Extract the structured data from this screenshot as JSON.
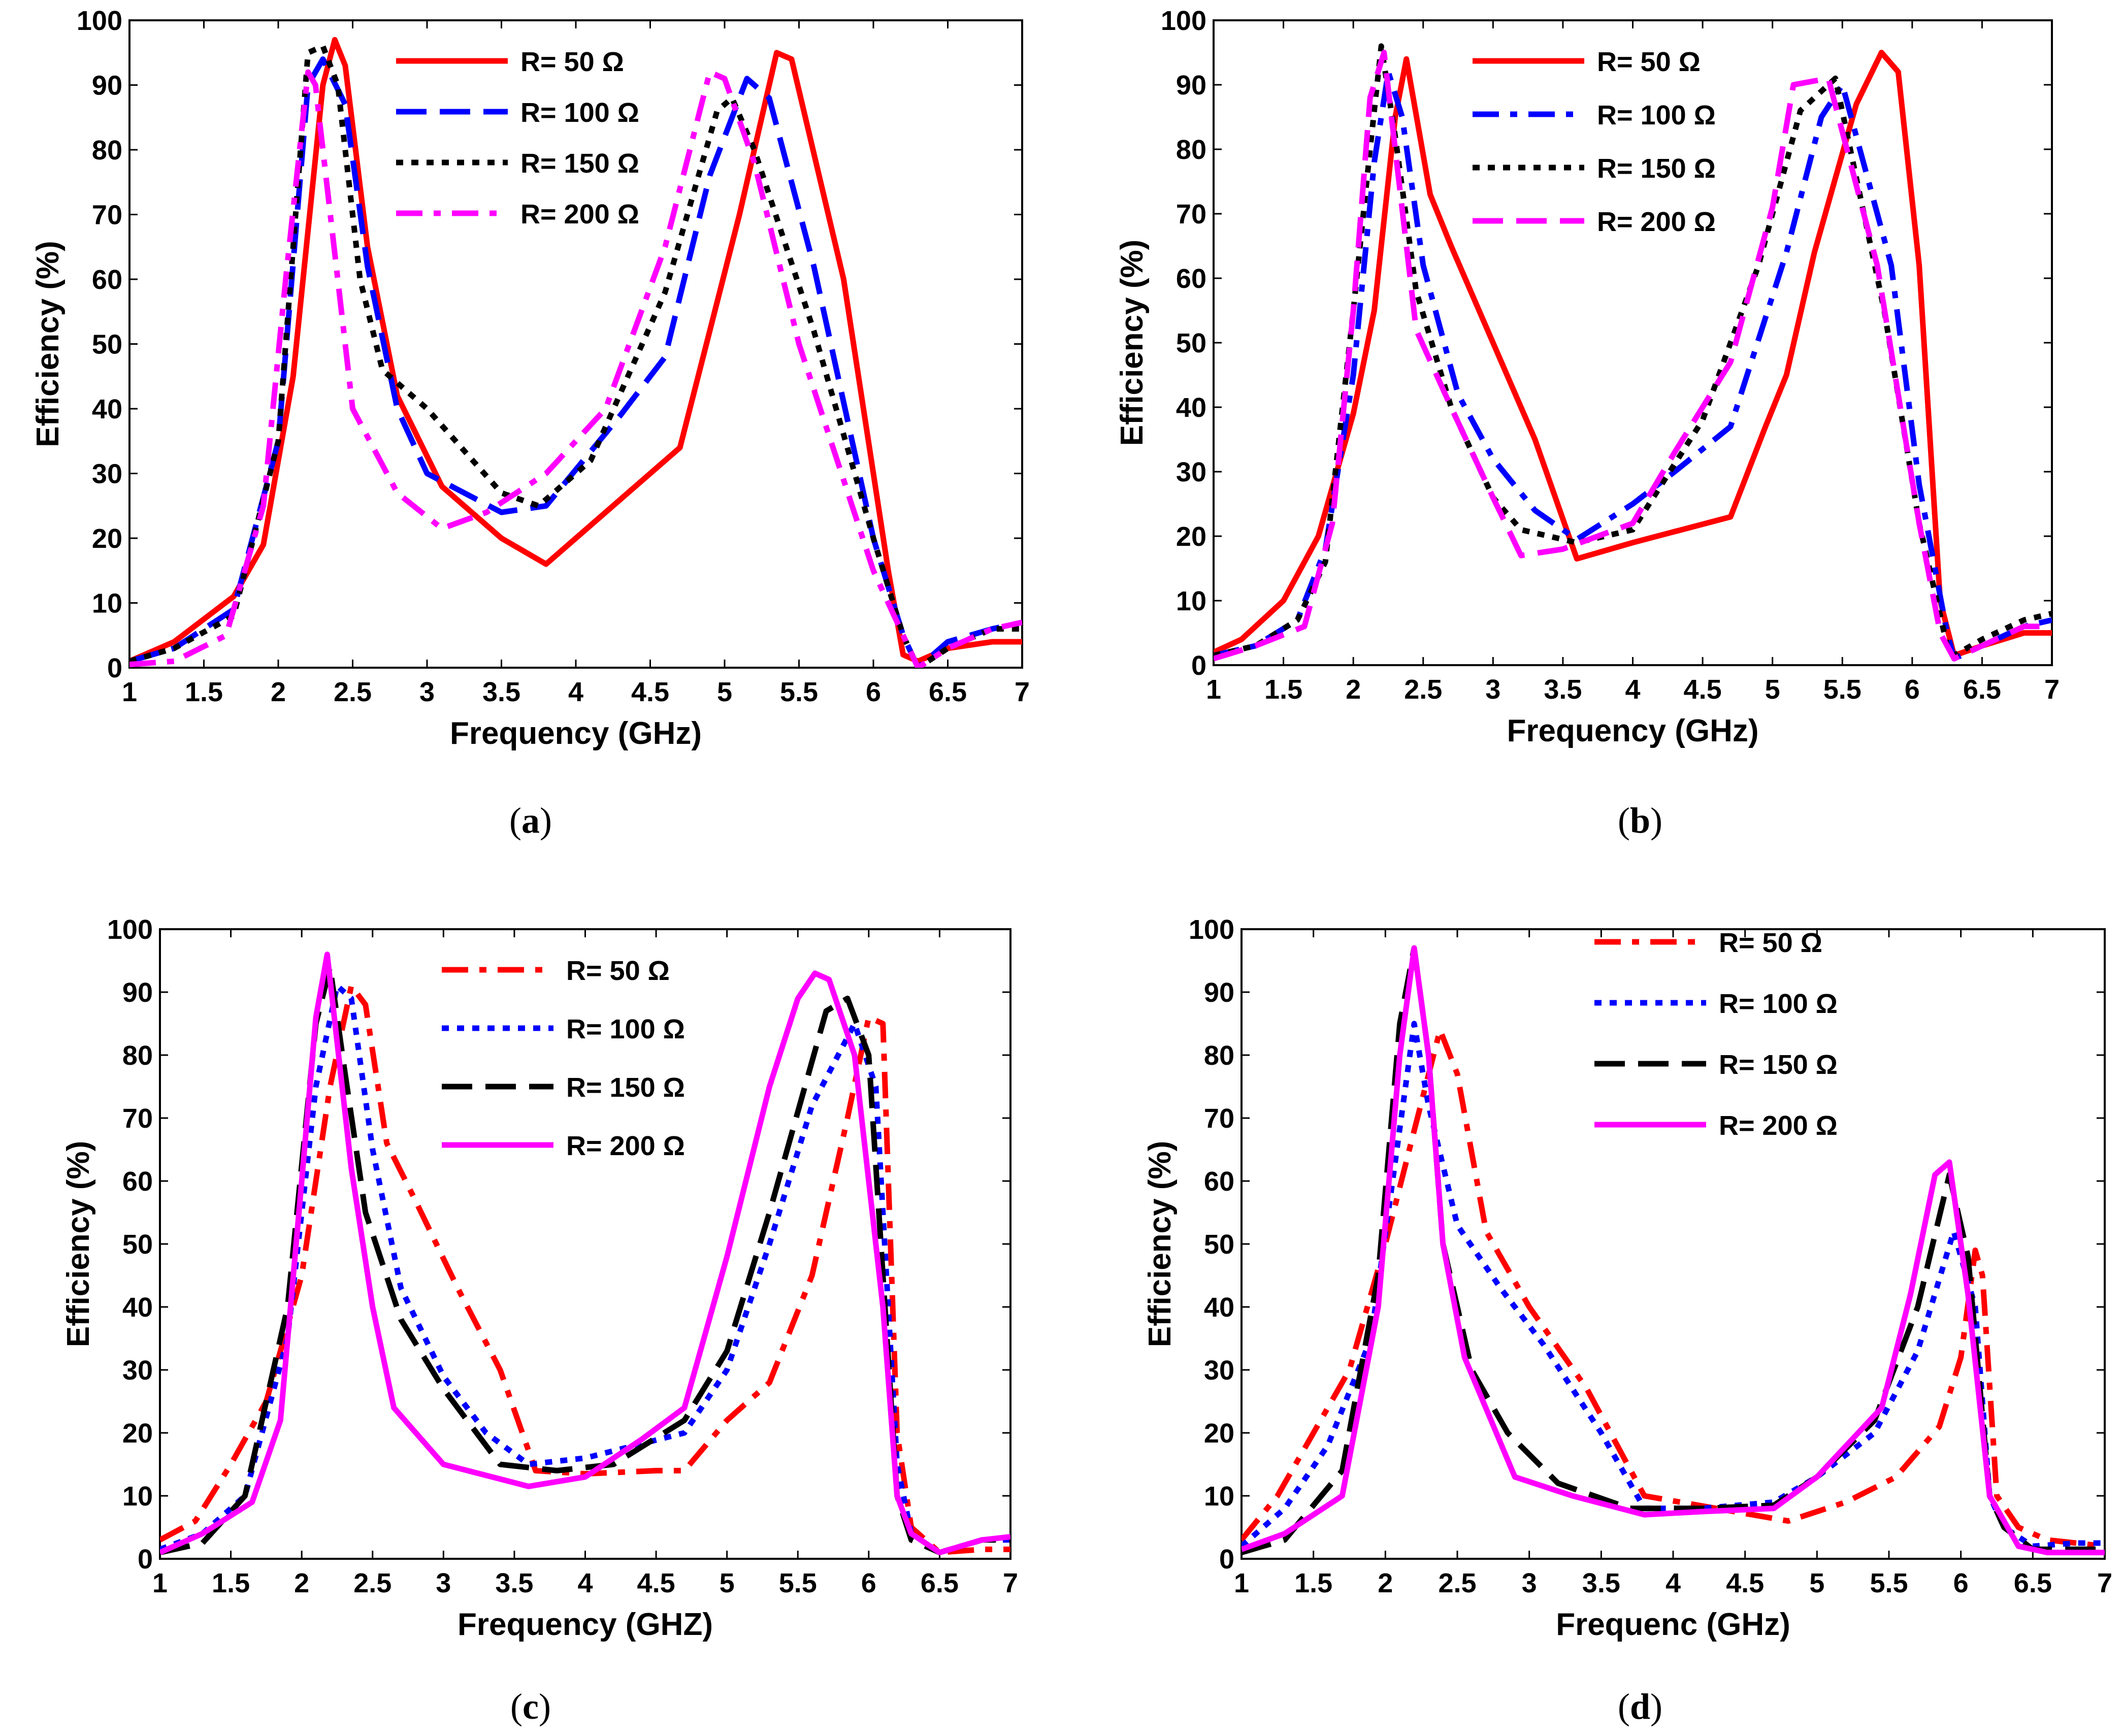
{
  "chart_data": [
    {
      "id": "a",
      "type": "line",
      "caption": "a",
      "xlabel": "Frequency (GHz)",
      "ylabel": "Efficiency (%)",
      "xlim": [
        1,
        7
      ],
      "ylim": [
        0,
        100
      ],
      "xticks": [
        "1",
        "1.5",
        "2",
        "2.5",
        "3",
        "3.5",
        "4",
        "4.5",
        "5",
        "5.5",
        "6",
        "6.5",
        "7"
      ],
      "yticks": [
        "0",
        "10",
        "20",
        "30",
        "40",
        "50",
        "60",
        "70",
        "80",
        "90",
        "100"
      ],
      "legend_position": "top-center",
      "series": [
        {
          "name": "R= 50 Ω",
          "color": "#ff0000",
          "style": "solid",
          "x": [
            1,
            1.3,
            1.7,
            1.9,
            2.1,
            2.3,
            2.38,
            2.45,
            2.6,
            2.8,
            3.1,
            3.5,
            3.8,
            4.7,
            5.1,
            5.35,
            5.45,
            5.8,
            6.1,
            6.2,
            6.3,
            6.5,
            6.8,
            7
          ],
          "y": [
            1,
            4,
            11,
            19,
            45,
            90,
            97,
            93,
            65,
            42,
            28,
            20,
            16,
            34,
            70,
            95,
            94,
            60,
            15,
            2,
            1,
            3,
            4,
            4
          ]
        },
        {
          "name": "R= 100 Ω",
          "color": "#0000ff",
          "style": "dashed",
          "x": [
            1,
            1.3,
            1.7,
            2.0,
            2.2,
            2.3,
            2.45,
            2.6,
            2.8,
            3.0,
            3.5,
            3.8,
            4.3,
            4.6,
            4.9,
            5.15,
            5.3,
            5.6,
            6.0,
            6.2,
            6.3,
            6.5,
            6.8,
            7
          ],
          "y": [
            1,
            3,
            9,
            35,
            90,
            94,
            87,
            62,
            40,
            30,
            24,
            25,
            39,
            48,
            76,
            91,
            88,
            62,
            20,
            5,
            0,
            4,
            6,
            7
          ]
        },
        {
          "name": "R= 150 Ω",
          "color": "#000000",
          "style": "dotted",
          "x": [
            1,
            1.3,
            1.7,
            2.0,
            2.2,
            2.3,
            2.4,
            2.55,
            2.7,
            3.0,
            3.5,
            3.75,
            4.1,
            4.6,
            4.95,
            5.05,
            5.2,
            5.6,
            6.0,
            6.2,
            6.3,
            6.5,
            6.8,
            7
          ],
          "y": [
            1,
            3,
            8,
            35,
            95,
            96,
            90,
            60,
            46,
            40,
            27,
            25,
            32,
            58,
            86,
            88,
            80,
            52,
            20,
            5,
            0,
            3,
            6,
            6
          ]
        },
        {
          "name": "R= 200 Ω",
          "color": "#ff00ff",
          "style": "dashdot",
          "x": [
            1,
            1.3,
            1.65,
            1.9,
            2.05,
            2.2,
            2.25,
            2.35,
            2.5,
            2.8,
            3.1,
            3.4,
            3.8,
            4.2,
            4.6,
            4.9,
            5.0,
            5.2,
            5.5,
            6.0,
            6.2,
            6.3,
            6.5,
            6.8,
            7
          ],
          "y": [
            0.5,
            1,
            5,
            25,
            60,
            92,
            90,
            70,
            40,
            27,
            21.5,
            24,
            30,
            40,
            65,
            92,
            91,
            78,
            50,
            15,
            5,
            0,
            3,
            6,
            7
          ]
        }
      ]
    },
    {
      "id": "b",
      "type": "line",
      "caption": "b",
      "xlabel": "Frequency (GHz)",
      "ylabel": "Efficiency (%)",
      "xlim": [
        1,
        7
      ],
      "ylim": [
        0,
        100
      ],
      "xticks": [
        "1",
        "1.5",
        "2",
        "2.5",
        "3",
        "3.5",
        "4",
        "4.5",
        "5",
        "5.5",
        "6",
        "6.5",
        "7"
      ],
      "yticks": [
        "0",
        "10",
        "20",
        "30",
        "40",
        "50",
        "60",
        "70",
        "80",
        "90",
        "100"
      ],
      "legend_position": "top-center",
      "series": [
        {
          "name": "R= 50 Ω",
          "color": "#ff0000",
          "style": "solid",
          "x": [
            1,
            1.2,
            1.5,
            1.75,
            2.0,
            2.15,
            2.3,
            2.38,
            2.55,
            2.7,
            3.0,
            3.3,
            3.6,
            4.0,
            4.7,
            4.95,
            5.1,
            5.3,
            5.6,
            5.78,
            5.9,
            6.05,
            6.2,
            6.3,
            6.5,
            6.8,
            7
          ],
          "y": [
            2,
            4,
            10,
            20,
            39,
            55,
            85,
            94,
            73,
            65,
            50,
            35,
            16.5,
            19,
            23,
            37,
            45,
            64,
            87,
            95,
            92,
            62,
            10,
            1.5,
            3,
            5,
            5
          ]
        },
        {
          "name": "R= 100 Ω",
          "color": "#0000ff",
          "style": "dashdot",
          "x": [
            1,
            1.3,
            1.6,
            1.8,
            2.0,
            2.15,
            2.25,
            2.35,
            2.5,
            2.75,
            3.0,
            3.3,
            3.6,
            4.0,
            4.3,
            4.7,
            5.1,
            5.35,
            5.5,
            5.85,
            6.05,
            6.25,
            6.3,
            6.5,
            6.8,
            7
          ],
          "y": [
            1.5,
            3,
            7,
            18,
            45,
            78,
            92,
            85,
            62,
            42,
            32,
            24,
            19.5,
            25,
            30,
            37,
            64,
            85,
            90,
            62,
            28,
            5,
            1,
            3,
            6,
            7
          ]
        },
        {
          "name": "R= 150 Ω",
          "color": "#000000",
          "style": "dotted",
          "x": [
            1,
            1.3,
            1.6,
            1.8,
            2.0,
            2.12,
            2.2,
            2.3,
            2.45,
            2.7,
            3.0,
            3.2,
            3.6,
            4.0,
            4.5,
            4.9,
            5.2,
            5.45,
            5.8,
            6.05,
            6.25,
            6.3,
            6.5,
            6.8,
            7
          ],
          "y": [
            1.5,
            3,
            7,
            16,
            55,
            80,
            96,
            82,
            58,
            40,
            26,
            21,
            19,
            21,
            38,
            62,
            86,
            91,
            55,
            22,
            3,
            1.5,
            4,
            7,
            8
          ]
        },
        {
          "name": "R= 200 Ω",
          "color": "#ff00ff",
          "style": "dashed",
          "x": [
            1,
            1.3,
            1.65,
            1.85,
            2.0,
            2.12,
            2.22,
            2.3,
            2.45,
            2.7,
            3.0,
            3.2,
            3.5,
            4.0,
            4.3,
            4.7,
            5.0,
            5.15,
            5.4,
            5.75,
            6.05,
            6.2,
            6.3,
            6.5,
            6.8,
            7
          ],
          "y": [
            1,
            3,
            6,
            22,
            55,
            88,
            95,
            80,
            52,
            40,
            26,
            17,
            18,
            22,
            33,
            47,
            71,
            90,
            91,
            62,
            22,
            5,
            1,
            3,
            6,
            6
          ]
        }
      ]
    },
    {
      "id": "c",
      "type": "line",
      "caption": "c",
      "xlabel": "Frequency (GHZ)",
      "ylabel": "Efficiency (%)",
      "xlim": [
        1,
        7
      ],
      "ylim": [
        0,
        100
      ],
      "xticks": [
        "1",
        "1.5",
        "2",
        "2.5",
        "3",
        "3.5",
        "4",
        "4.5",
        "5",
        "5.5",
        "6",
        "6.5",
        "7"
      ],
      "yticks": [
        "0",
        "10",
        "20",
        "30",
        "40",
        "50",
        "60",
        "70",
        "80",
        "90",
        "100"
      ],
      "legend_position": "top-center",
      "series": [
        {
          "name": "R= 50 Ω",
          "color": "#ff0000",
          "style": "dashdot",
          "x": [
            1,
            1.25,
            1.5,
            1.75,
            2.0,
            2.2,
            2.35,
            2.45,
            2.6,
            2.8,
            3.1,
            3.4,
            3.65,
            4.0,
            4.5,
            4.7,
            5.0,
            5.3,
            5.6,
            5.85,
            6.0,
            6.1,
            6.2,
            6.3,
            6.5,
            6.8,
            7
          ],
          "y": [
            3,
            6,
            15,
            25,
            45,
            75,
            91,
            88,
            66,
            57,
            43,
            30,
            14,
            13.5,
            14,
            14,
            22,
            28,
            45,
            70,
            86,
            85,
            20,
            5,
            1,
            1.5,
            1.5
          ]
        },
        {
          "name": "R= 100 Ω",
          "color": "#0000ff",
          "style": "dotted",
          "x": [
            1,
            1.3,
            1.6,
            1.9,
            2.1,
            2.25,
            2.35,
            2.5,
            2.7,
            3.0,
            3.3,
            3.6,
            4.0,
            4.7,
            5.0,
            5.3,
            5.6,
            5.9,
            6.05,
            6.2,
            6.3,
            6.5,
            6.8,
            7
          ],
          "y": [
            1.5,
            4,
            10,
            35,
            75,
            91,
            89,
            65,
            43,
            29,
            20,
            15,
            16,
            20,
            30,
            50,
            72,
            85,
            75,
            15,
            4,
            1,
            3,
            3
          ]
        },
        {
          "name": "R= 150 Ω",
          "color": "#000000",
          "style": "dashed",
          "x": [
            1,
            1.3,
            1.6,
            1.9,
            2.1,
            2.2,
            2.3,
            2.45,
            2.7,
            3.0,
            3.4,
            3.8,
            4.2,
            4.7,
            5.0,
            5.3,
            5.55,
            5.7,
            5.85,
            6.0,
            6.1,
            6.2,
            6.3,
            6.5,
            6.8,
            7
          ],
          "y": [
            1,
            2.5,
            10,
            40,
            85,
            94,
            78,
            55,
            38,
            27,
            15,
            14,
            15,
            22,
            33,
            55,
            75,
            87,
            89,
            80,
            45,
            10,
            3,
            1,
            3,
            3
          ]
        },
        {
          "name": "R= 200 Ω",
          "color": "#ff00ff",
          "style": "solid",
          "x": [
            1,
            1.3,
            1.65,
            1.85,
            2.0,
            2.1,
            2.18,
            2.25,
            2.35,
            2.5,
            2.65,
            3.0,
            3.6,
            4.0,
            4.4,
            4.7,
            5.0,
            5.3,
            5.5,
            5.62,
            5.72,
            5.9,
            6.1,
            6.2,
            6.3,
            6.5,
            6.8,
            7
          ],
          "y": [
            1,
            4,
            9,
            22,
            60,
            86,
            96,
            82,
            62,
            40,
            24,
            15,
            11.5,
            13,
            19,
            24,
            48,
            75,
            89,
            93,
            92,
            80,
            40,
            10,
            4,
            1,
            3,
            3.5
          ]
        }
      ]
    },
    {
      "id": "d",
      "type": "line",
      "caption": "d",
      "xlabel": "Frequenc (GHz)",
      "ylabel": "Efficiency (%)",
      "xlim": [
        1,
        7
      ],
      "ylim": [
        0,
        100
      ],
      "xticks": [
        "1",
        "1.5",
        "2",
        "2.5",
        "3",
        "3.5",
        "4",
        "4.5",
        "5",
        "5.5",
        "6",
        "6.5",
        "7"
      ],
      "yticks": [
        "0",
        "10",
        "20",
        "30",
        "40",
        "50",
        "60",
        "70",
        "80",
        "90",
        "100"
      ],
      "legend_position": "top-center",
      "series": [
        {
          "name": "R= 50 Ω",
          "color": "#ff0000",
          "style": "dashdot",
          "x": [
            1,
            1.25,
            1.5,
            1.75,
            2.0,
            2.2,
            2.38,
            2.5,
            2.7,
            3.0,
            3.4,
            3.8,
            4.3,
            4.8,
            5.2,
            5.55,
            5.85,
            6.0,
            6.1,
            6.15,
            6.25,
            6.4,
            6.6,
            7
          ],
          "y": [
            3,
            10,
            20,
            30,
            50,
            68,
            84,
            77,
            52,
            40,
            27,
            10,
            8,
            6,
            9,
            13,
            21,
            32,
            49,
            45,
            10,
            5,
            3,
            2
          ]
        },
        {
          "name": "R= 100 Ω",
          "color": "#0000ff",
          "style": "dotted",
          "x": [
            1,
            1.3,
            1.6,
            1.9,
            2.05,
            2.2,
            2.3,
            2.5,
            2.8,
            3.1,
            3.5,
            3.8,
            4.2,
            4.7,
            5.0,
            5.4,
            5.7,
            5.95,
            6.1,
            6.2,
            6.3,
            6.5,
            6.8,
            7
          ],
          "y": [
            2,
            8,
            18,
            35,
            60,
            85,
            72,
            53,
            43,
            34,
            20,
            8,
            8,
            9,
            13,
            20,
            33,
            52,
            40,
            10,
            5,
            2,
            2.5,
            2.5
          ]
        },
        {
          "name": "R= 150 Ω",
          "color": "#000000",
          "style": "dashed",
          "x": [
            1,
            1.3,
            1.7,
            1.95,
            2.1,
            2.2,
            2.3,
            2.4,
            2.6,
            2.85,
            3.2,
            3.7,
            4.2,
            4.7,
            5.0,
            5.4,
            5.7,
            5.92,
            6.05,
            6.2,
            6.3,
            6.5,
            6.8,
            7
          ],
          "y": [
            1,
            3,
            14,
            45,
            85,
            97,
            80,
            50,
            30,
            20,
            12,
            8,
            8,
            8.5,
            13,
            22,
            40,
            61,
            48,
            10,
            5,
            1.5,
            1.5,
            1.5
          ]
        },
        {
          "name": "R= 200 Ω",
          "color": "#ff00ff",
          "style": "solid",
          "x": [
            1,
            1.3,
            1.7,
            1.95,
            2.1,
            2.2,
            2.3,
            2.4,
            2.55,
            2.9,
            3.3,
            3.8,
            4.2,
            4.7,
            5.0,
            5.45,
            5.65,
            5.82,
            5.92,
            6.05,
            6.2,
            6.4,
            6.6,
            7
          ],
          "y": [
            1.5,
            4,
            10,
            40,
            80,
            97,
            80,
            50,
            32,
            13,
            10,
            7,
            7.5,
            8,
            13,
            24,
            42,
            61,
            63,
            42,
            10,
            2,
            1,
            1
          ]
        }
      ]
    }
  ]
}
